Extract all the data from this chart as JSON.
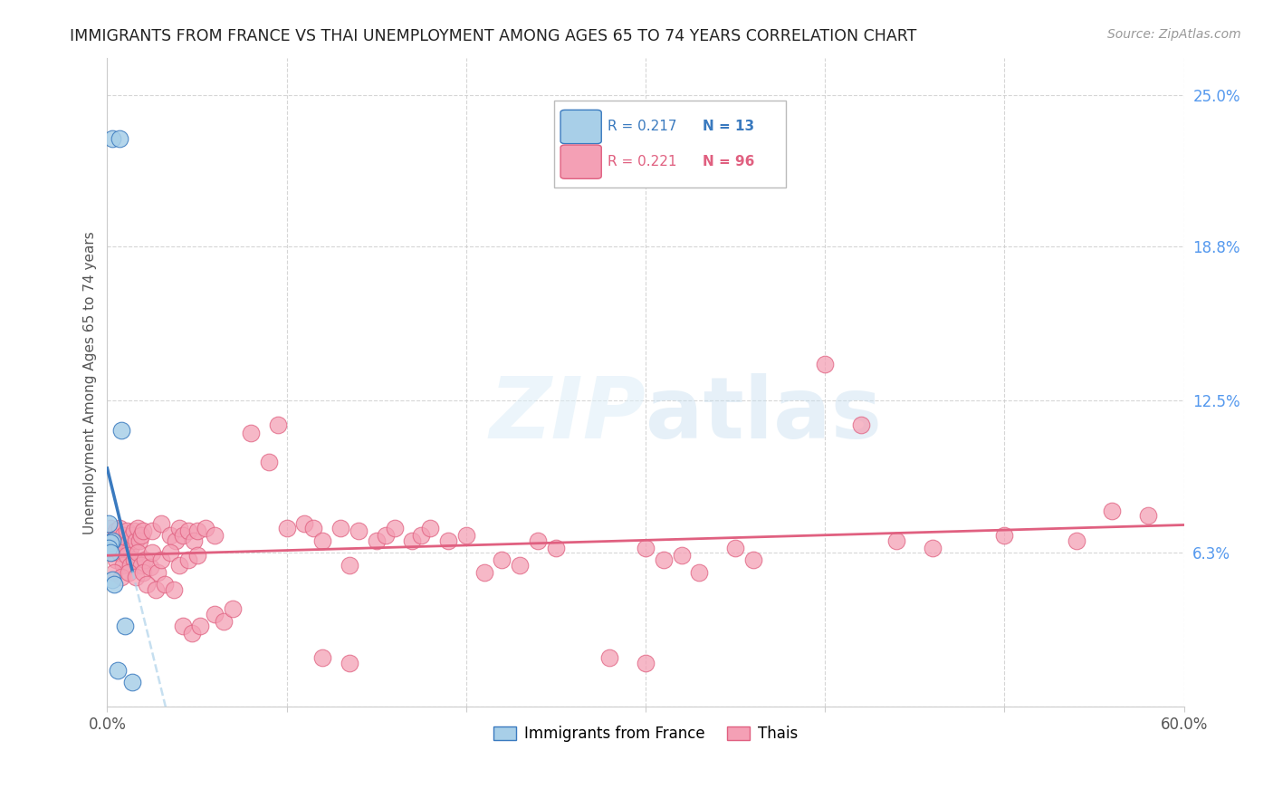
{
  "title": "IMMIGRANTS FROM FRANCE VS THAI UNEMPLOYMENT AMONG AGES 65 TO 74 YEARS CORRELATION CHART",
  "source": "Source: ZipAtlas.com",
  "ylabel": "Unemployment Among Ages 65 to 74 years",
  "xlim": [
    0.0,
    0.6
  ],
  "ylim": [
    0.0,
    0.265
  ],
  "ytick_positions": [
    0.0,
    0.063,
    0.125,
    0.188,
    0.25
  ],
  "ytick_labels": [
    "",
    "6.3%",
    "12.5%",
    "18.8%",
    "25.0%"
  ],
  "color_france": "#a8cfe8",
  "color_thai": "#f4a0b5",
  "color_france_line": "#3a7abf",
  "color_thai_line": "#e06080",
  "color_france_dash": "#a8cfe8",
  "france_points": [
    [
      0.003,
      0.232
    ],
    [
      0.007,
      0.232
    ],
    [
      0.001,
      0.075
    ],
    [
      0.008,
      0.113
    ],
    [
      0.003,
      0.068
    ],
    [
      0.002,
      0.067
    ],
    [
      0.001,
      0.065
    ],
    [
      0.002,
      0.063
    ],
    [
      0.003,
      0.052
    ],
    [
      0.004,
      0.05
    ],
    [
      0.01,
      0.033
    ],
    [
      0.006,
      0.015
    ],
    [
      0.014,
      0.01
    ]
  ],
  "thai_points": [
    [
      0.002,
      0.073
    ],
    [
      0.003,
      0.07
    ],
    [
      0.004,
      0.068
    ],
    [
      0.005,
      0.072
    ],
    [
      0.006,
      0.068
    ],
    [
      0.007,
      0.073
    ],
    [
      0.008,
      0.065
    ],
    [
      0.009,
      0.07
    ],
    [
      0.01,
      0.068
    ],
    [
      0.011,
      0.072
    ],
    [
      0.012,
      0.067
    ],
    [
      0.013,
      0.065
    ],
    [
      0.014,
      0.07
    ],
    [
      0.015,
      0.072
    ],
    [
      0.016,
      0.068
    ],
    [
      0.017,
      0.073
    ],
    [
      0.018,
      0.068
    ],
    [
      0.019,
      0.07
    ],
    [
      0.02,
      0.072
    ],
    [
      0.003,
      0.063
    ],
    [
      0.005,
      0.06
    ],
    [
      0.007,
      0.063
    ],
    [
      0.009,
      0.058
    ],
    [
      0.011,
      0.062
    ],
    [
      0.013,
      0.058
    ],
    [
      0.015,
      0.06
    ],
    [
      0.017,
      0.063
    ],
    [
      0.019,
      0.058
    ],
    [
      0.021,
      0.06
    ],
    [
      0.004,
      0.055
    ],
    [
      0.008,
      0.053
    ],
    [
      0.012,
      0.055
    ],
    [
      0.016,
      0.053
    ],
    [
      0.02,
      0.055
    ],
    [
      0.024,
      0.057
    ],
    [
      0.028,
      0.055
    ],
    [
      0.025,
      0.072
    ],
    [
      0.03,
      0.075
    ],
    [
      0.035,
      0.07
    ],
    [
      0.038,
      0.068
    ],
    [
      0.04,
      0.073
    ],
    [
      0.042,
      0.07
    ],
    [
      0.045,
      0.072
    ],
    [
      0.048,
      0.068
    ],
    [
      0.05,
      0.072
    ],
    [
      0.055,
      0.073
    ],
    [
      0.06,
      0.07
    ],
    [
      0.025,
      0.063
    ],
    [
      0.03,
      0.06
    ],
    [
      0.035,
      0.063
    ],
    [
      0.04,
      0.058
    ],
    [
      0.045,
      0.06
    ],
    [
      0.05,
      0.062
    ],
    [
      0.022,
      0.05
    ],
    [
      0.027,
      0.048
    ],
    [
      0.032,
      0.05
    ],
    [
      0.037,
      0.048
    ],
    [
      0.042,
      0.033
    ],
    [
      0.047,
      0.03
    ],
    [
      0.052,
      0.033
    ],
    [
      0.06,
      0.038
    ],
    [
      0.065,
      0.035
    ],
    [
      0.07,
      0.04
    ],
    [
      0.08,
      0.112
    ],
    [
      0.09,
      0.1
    ],
    [
      0.095,
      0.115
    ],
    [
      0.1,
      0.073
    ],
    [
      0.11,
      0.075
    ],
    [
      0.115,
      0.073
    ],
    [
      0.12,
      0.068
    ],
    [
      0.13,
      0.073
    ],
    [
      0.135,
      0.058
    ],
    [
      0.14,
      0.072
    ],
    [
      0.15,
      0.068
    ],
    [
      0.155,
      0.07
    ],
    [
      0.16,
      0.073
    ],
    [
      0.17,
      0.068
    ],
    [
      0.175,
      0.07
    ],
    [
      0.18,
      0.073
    ],
    [
      0.19,
      0.068
    ],
    [
      0.2,
      0.07
    ],
    [
      0.21,
      0.055
    ],
    [
      0.22,
      0.06
    ],
    [
      0.23,
      0.058
    ],
    [
      0.24,
      0.068
    ],
    [
      0.25,
      0.065
    ],
    [
      0.3,
      0.065
    ],
    [
      0.31,
      0.06
    ],
    [
      0.32,
      0.062
    ],
    [
      0.33,
      0.055
    ],
    [
      0.35,
      0.065
    ],
    [
      0.36,
      0.06
    ],
    [
      0.4,
      0.14
    ],
    [
      0.42,
      0.115
    ],
    [
      0.44,
      0.068
    ],
    [
      0.46,
      0.065
    ],
    [
      0.5,
      0.07
    ],
    [
      0.54,
      0.068
    ],
    [
      0.56,
      0.08
    ],
    [
      0.58,
      0.078
    ],
    [
      0.12,
      0.02
    ],
    [
      0.135,
      0.018
    ],
    [
      0.28,
      0.02
    ],
    [
      0.3,
      0.018
    ]
  ]
}
